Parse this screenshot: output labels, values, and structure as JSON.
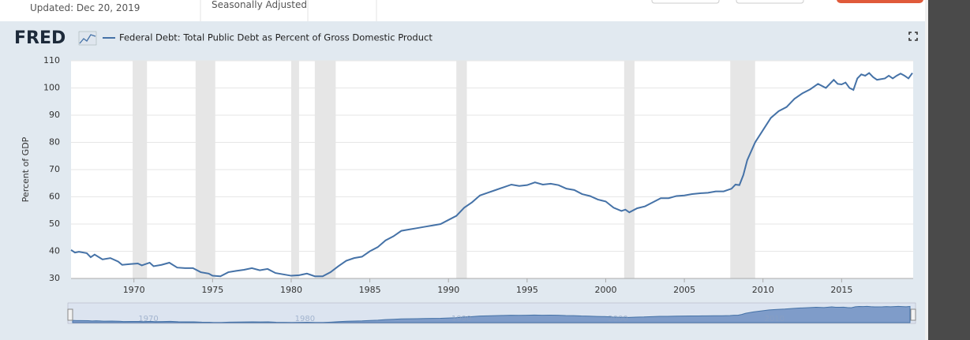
{
  "header": {
    "updated": "Updated: Dec 20, 2019",
    "adjustment": "Seasonally Adjusted"
  },
  "chart_data": {
    "type": "line",
    "brand": "FRED",
    "y_label": "Percent of GDP",
    "x": [
      1966.0,
      1966.25,
      1966.5,
      1967.0,
      1967.25,
      1967.5,
      1968.0,
      1968.5,
      1969.0,
      1969.25,
      1969.75,
      1970.25,
      1970.5,
      1971.0,
      1971.25,
      1971.75,
      1972.25,
      1972.75,
      1973.25,
      1973.75,
      1974.25,
      1974.75,
      1975.0,
      1975.5,
      1976.0,
      1976.5,
      1977.0,
      1977.5,
      1978.0,
      1978.5,
      1979.0,
      1979.5,
      1980.0,
      1980.5,
      1981.0,
      1981.5,
      1982.0,
      1982.5,
      1983.0,
      1983.5,
      1984.0,
      1984.5,
      1985.0,
      1985.5,
      1986.0,
      1986.5,
      1987.0,
      1987.5,
      1988.0,
      1988.5,
      1989.0,
      1989.5,
      1990.0,
      1990.5,
      1991.0,
      1991.5,
      1992.0,
      1992.5,
      1993.0,
      1993.5,
      1994.0,
      1994.5,
      1995.0,
      1995.5,
      1996.0,
      1996.5,
      1997.0,
      1997.5,
      1998.0,
      1998.5,
      1999.0,
      1999.5,
      2000.0,
      2000.5,
      2001.0,
      2001.25,
      2001.5,
      2002.0,
      2002.5,
      2003.0,
      2003.5,
      2004.0,
      2004.5,
      2005.0,
      2005.5,
      2006.0,
      2006.5,
      2007.0,
      2007.5,
      2008.0,
      2008.25,
      2008.5,
      2008.75,
      2009.0,
      2009.5,
      2010.0,
      2010.5,
      2011.0,
      2011.5,
      2012.0,
      2012.5,
      2013.0,
      2013.5,
      2014.0,
      2014.5,
      2014.75,
      2015.0,
      2015.25,
      2015.5,
      2015.75,
      2016.0,
      2016.25,
      2016.5,
      2016.75,
      2017.0,
      2017.25,
      2017.75,
      2018.0,
      2018.25,
      2018.5,
      2018.75,
      2019.0,
      2019.25,
      2019.5
    ],
    "series": [
      {
        "name": "Federal Debt: Total Public Debt as Percent of Gross Domestic Product",
        "color": "#4572a7",
        "values": [
          40.5,
          39.5,
          39.8,
          39.3,
          37.8,
          38.8,
          37.0,
          37.5,
          36.2,
          35.0,
          35.3,
          35.5,
          34.8,
          35.8,
          34.5,
          35.0,
          35.8,
          34.0,
          33.8,
          33.8,
          32.3,
          31.8,
          31.0,
          30.8,
          32.3,
          32.8,
          33.2,
          33.8,
          33.0,
          33.5,
          32.0,
          31.5,
          31.0,
          31.2,
          31.8,
          30.8,
          30.8,
          32.3,
          34.5,
          36.5,
          37.5,
          38.0,
          40.0,
          41.5,
          44.0,
          45.5,
          47.5,
          48.0,
          48.5,
          49.0,
          49.5,
          50.0,
          51.5,
          53.0,
          56.0,
          58.0,
          60.5,
          61.5,
          62.5,
          63.5,
          64.5,
          64.0,
          64.3,
          65.3,
          64.5,
          64.8,
          64.3,
          63.0,
          62.5,
          61.0,
          60.3,
          59.0,
          58.3,
          56.0,
          54.8,
          55.3,
          54.3,
          55.8,
          56.5,
          58.0,
          59.5,
          59.5,
          60.3,
          60.5,
          61.0,
          61.3,
          61.5,
          62.0,
          62.0,
          63.0,
          64.5,
          64.3,
          68.0,
          73.5,
          80.0,
          84.5,
          89.0,
          91.5,
          93.0,
          96.0,
          98.0,
          99.5,
          101.5,
          100.0,
          103.0,
          101.5,
          101.3,
          102.0,
          100.0,
          99.3,
          103.5,
          105.0,
          104.5,
          105.5,
          104.0,
          103.0,
          103.5,
          104.5,
          103.5,
          104.5,
          105.3,
          104.5,
          103.5,
          105.5
        ]
      }
    ],
    "recessions": [
      [
        1969.92,
        1970.83
      ],
      [
        1973.92,
        1975.17
      ],
      [
        1980.0,
        1980.5
      ],
      [
        1981.5,
        1982.83
      ],
      [
        1990.5,
        1991.17
      ],
      [
        2001.17,
        2001.83
      ],
      [
        2007.92,
        2009.5
      ]
    ],
    "xlim": [
      1966,
      2019.55
    ],
    "ylim": [
      30,
      110
    ],
    "xticks": [
      1970,
      1975,
      1980,
      1985,
      1990,
      1995,
      2000,
      2005,
      2010,
      2015
    ],
    "yticks": [
      30,
      40,
      50,
      60,
      70,
      80,
      90,
      100,
      110
    ],
    "navigator_ticks": [
      1970,
      1980,
      1990,
      2000,
      2010
    ],
    "grid": true
  }
}
